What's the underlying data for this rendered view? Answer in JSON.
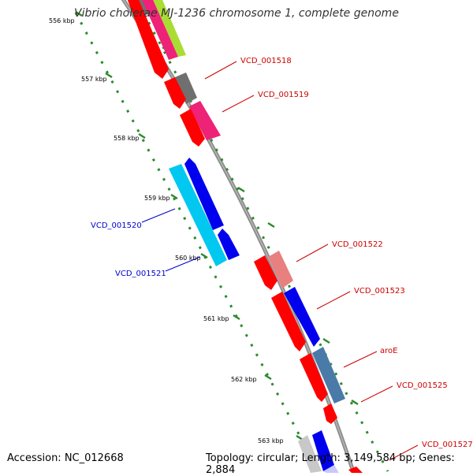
{
  "title": "Vibrio cholerae MJ-1236 chromosome 1, complete genome",
  "footer": {
    "accession": "Accession: NC_012668",
    "summary": "Topology: circular; Length: 3,149,584 bp; Genes: 2,884"
  },
  "ticks": [
    "556 kbp",
    "557 kbp",
    "558 kbp",
    "559 kbp",
    "560 kbp",
    "561 kbp",
    "562 kbp",
    "563 kbp"
  ],
  "labels": [
    {
      "text": "VCD_001518",
      "color": "#cc0000"
    },
    {
      "text": "VCD_001519",
      "color": "#cc0000"
    },
    {
      "text": "VCD_001520",
      "color": "#0000cc"
    },
    {
      "text": "VCD_001521",
      "color": "#0000cc"
    },
    {
      "text": "VCD_001522",
      "color": "#cc0000"
    },
    {
      "text": "VCD_001523",
      "color": "#cc0000"
    },
    {
      "text": "aroE",
      "color": "#cc0000"
    },
    {
      "text": "VCD_001525",
      "color": "#cc0000"
    },
    {
      "text": "VCD_001527",
      "color": "#cc0000"
    }
  ],
  "colors": {
    "backbone": "#8c8c8c",
    "ticks": "#2d8a2d",
    "forward_cds": "#ff0000",
    "reverse_cds": "#0000ff"
  }
}
